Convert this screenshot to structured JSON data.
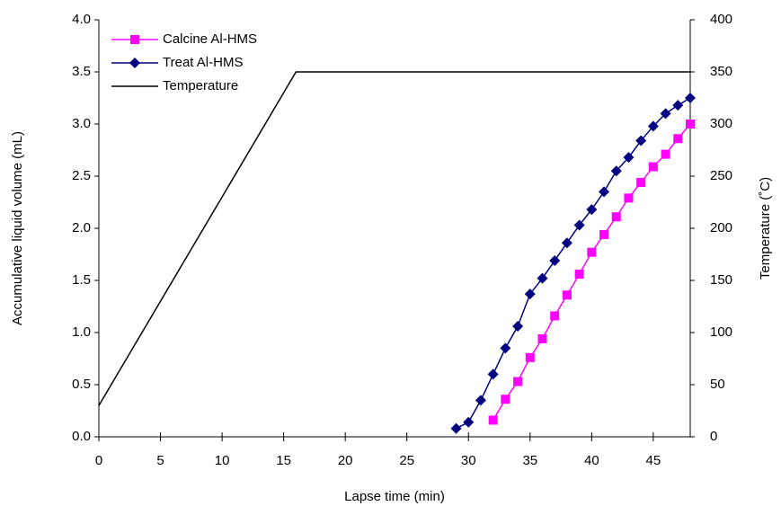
{
  "chart_data": {
    "type": "line",
    "x_label": "Lapse time (min)",
    "y_label": "Accumulative liquid volume (mL)",
    "y2_label": "Temperature (˚C)",
    "xlim": [
      0,
      48
    ],
    "xticks": [
      0,
      5,
      10,
      15,
      20,
      25,
      30,
      35,
      40,
      45
    ],
    "ylim": [
      0,
      4
    ],
    "yticks": [
      {
        "value": 0,
        "label": "0.0"
      },
      {
        "value": 0.5,
        "label": "0.5"
      },
      {
        "value": 1,
        "label": "1.0"
      },
      {
        "value": 1.5,
        "label": "1.5"
      },
      {
        "value": 2,
        "label": "2.0"
      },
      {
        "value": 2.5,
        "label": "2.5"
      },
      {
        "value": 3,
        "label": "3.0"
      },
      {
        "value": 3.5,
        "label": "3.5"
      },
      {
        "value": 4,
        "label": "4.0"
      }
    ],
    "y2lim": [
      0,
      400
    ],
    "y2ticks": [
      0,
      50,
      100,
      150,
      200,
      250,
      300,
      350,
      400
    ],
    "legend": "upper-left",
    "series": [
      {
        "name": "Calcine Al-HMS",
        "color": "#ff00ff",
        "marker": "square",
        "x": [
          32,
          33,
          34,
          35,
          36,
          37,
          38,
          39,
          40,
          41,
          42,
          43,
          44,
          45,
          46,
          47,
          48
        ],
        "values": [
          0.16,
          0.36,
          0.53,
          0.76,
          0.94,
          1.16,
          1.36,
          1.56,
          1.77,
          1.94,
          2.11,
          2.29,
          2.44,
          2.59,
          2.71,
          2.86,
          3.0
        ]
      },
      {
        "name": "Treat Al-HMS",
        "color": "#000080",
        "marker": "diamond",
        "x": [
          29,
          30,
          31,
          32,
          33,
          34,
          35,
          36,
          37,
          38,
          39,
          40,
          41,
          42,
          43,
          44,
          45,
          46,
          47,
          48
        ],
        "values": [
          0.08,
          0.14,
          0.35,
          0.6,
          0.85,
          1.06,
          1.37,
          1.52,
          1.69,
          1.86,
          2.03,
          2.18,
          2.35,
          2.55,
          2.68,
          2.84,
          2.98,
          3.1,
          3.18,
          3.25
        ]
      },
      {
        "name": "Temperature",
        "color": "#000000",
        "marker": "none",
        "axis": "y2",
        "x": [
          0,
          16,
          48
        ],
        "values": [
          30,
          350,
          350
        ]
      }
    ]
  }
}
